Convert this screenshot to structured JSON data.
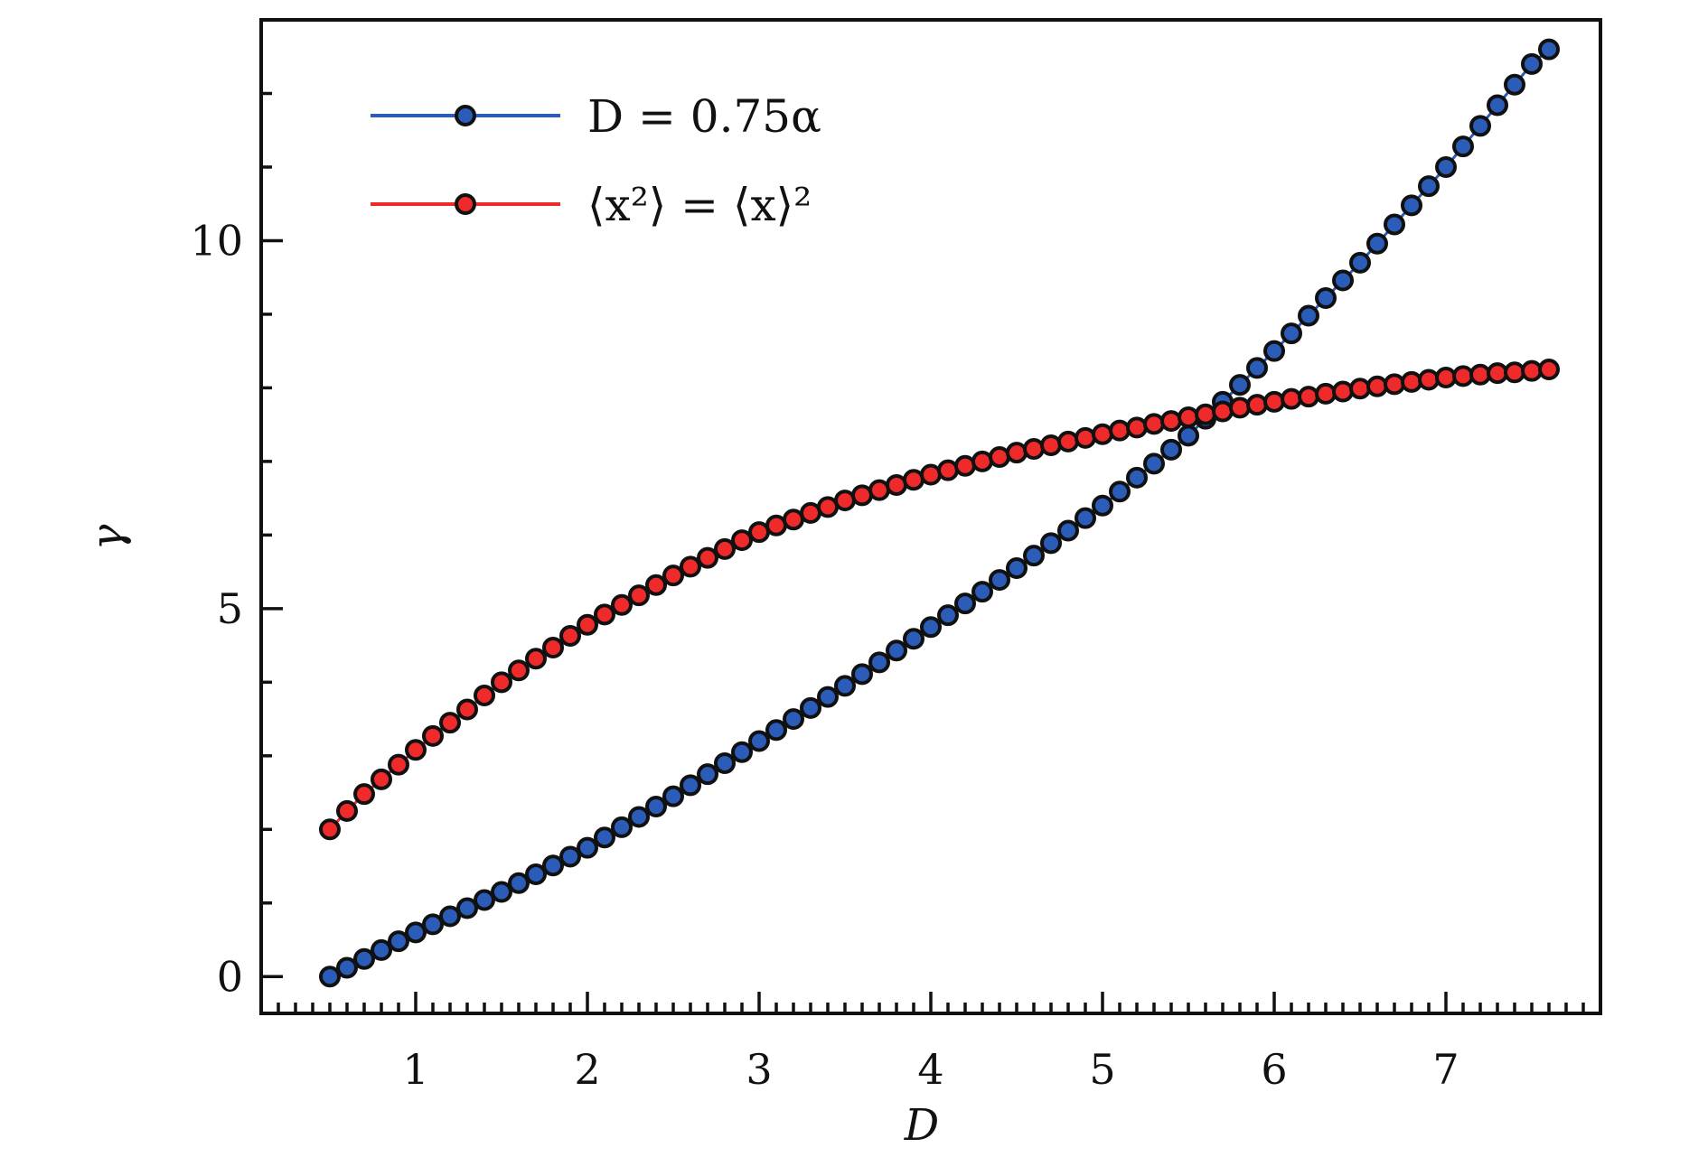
{
  "chart_data": {
    "type": "scatter",
    "title": "",
    "xlabel": "D",
    "ylabel": "γ",
    "xlim": [
      0.1,
      7.9
    ],
    "ylim": [
      -0.5,
      13.0
    ],
    "xticks": [
      1,
      2,
      3,
      4,
      5,
      6,
      7
    ],
    "yticks": [
      0,
      5,
      10
    ],
    "x_minor_step": 0.1,
    "y_minor_step": 1,
    "grid": false,
    "legend_position": "top-left",
    "x": [
      0.5,
      0.6,
      0.7,
      0.8,
      0.9,
      1.0,
      1.1,
      1.2,
      1.3,
      1.4,
      1.5,
      1.6,
      1.7,
      1.8,
      1.9,
      2.0,
      2.1,
      2.2,
      2.3,
      2.4,
      2.5,
      2.6,
      2.7,
      2.8,
      2.9,
      3.0,
      3.1,
      3.2,
      3.3,
      3.4,
      3.5,
      3.6,
      3.7,
      3.8,
      3.9,
      4.0,
      4.1,
      4.2,
      4.3,
      4.4,
      4.5,
      4.6,
      4.7,
      4.8,
      4.9,
      5.0,
      5.1,
      5.2,
      5.3,
      5.4,
      5.5,
      5.6,
      5.7,
      5.8,
      5.9,
      6.0,
      6.1,
      6.2,
      6.3,
      6.4,
      6.5,
      6.6,
      6.7,
      6.8,
      6.9,
      7.0,
      7.1,
      7.2,
      7.3,
      7.4,
      7.5,
      7.6
    ],
    "series": [
      {
        "name": "D = 0.75α",
        "color": "#2a5cb8",
        "values": [
          0,
          0.12,
          0.24,
          0.36,
          0.48,
          0.6,
          0.71,
          0.82,
          0.93,
          1.04,
          1.15,
          1.27,
          1.39,
          1.51,
          1.63,
          1.75,
          1.89,
          2.03,
          2.17,
          2.31,
          2.45,
          2.6,
          2.75,
          2.9,
          3.05,
          3.2,
          3.35,
          3.5,
          3.65,
          3.8,
          3.95,
          4.11,
          4.27,
          4.43,
          4.59,
          4.75,
          4.91,
          5.07,
          5.23,
          5.39,
          5.55,
          5.72,
          5.89,
          6.06,
          6.23,
          6.4,
          6.59,
          6.78,
          6.97,
          7.16,
          7.35,
          7.58,
          7.81,
          8.04,
          8.27,
          8.5,
          8.74,
          8.98,
          9.22,
          9.46,
          9.7,
          9.96,
          10.22,
          10.48,
          10.74,
          11.0,
          11.28,
          11.56,
          11.84,
          12.12,
          12.4,
          12.6
        ]
      },
      {
        "name": "⟨x²⟩ = ⟨x⟩²",
        "color": "#ee2a2a",
        "values": [
          2.0,
          2.25,
          2.48,
          2.68,
          2.88,
          3.08,
          3.27,
          3.45,
          3.63,
          3.82,
          4.0,
          4.16,
          4.32,
          4.47,
          4.63,
          4.78,
          4.92,
          5.05,
          5.18,
          5.32,
          5.45,
          5.57,
          5.69,
          5.81,
          5.93,
          6.04,
          6.13,
          6.21,
          6.3,
          6.38,
          6.47,
          6.54,
          6.61,
          6.68,
          6.75,
          6.82,
          6.88,
          6.94,
          7.0,
          7.06,
          7.12,
          7.17,
          7.22,
          7.27,
          7.32,
          7.37,
          7.42,
          7.46,
          7.51,
          7.55,
          7.6,
          7.64,
          7.68,
          7.73,
          7.77,
          7.81,
          7.85,
          7.88,
          7.92,
          7.95,
          7.99,
          8.02,
          8.05,
          8.08,
          8.11,
          8.14,
          8.16,
          8.18,
          8.2,
          8.21,
          8.23,
          8.25
        ]
      }
    ]
  }
}
